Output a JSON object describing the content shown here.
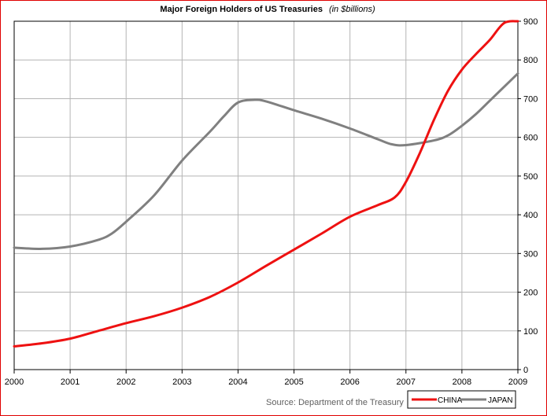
{
  "chart_data": {
    "type": "line",
    "title": "Major Foreign Holders of US Treasuries",
    "subtitle": "(in $billions)",
    "source": "Source: Department of the Treasury",
    "x_ticks": [
      "2000",
      "2001",
      "2002",
      "2003",
      "2004",
      "2005",
      "2006",
      "2007",
      "2008",
      "2009"
    ],
    "y_ticks": [
      "0",
      "100",
      "200",
      "300",
      "400",
      "500",
      "600",
      "700",
      "800",
      "900"
    ],
    "xlim": [
      2000,
      2009
    ],
    "ylim": [
      0,
      900
    ],
    "grid": true,
    "y_axis_side": "right",
    "legend_position": "bottom-right",
    "series": [
      {
        "name": "CHINA",
        "color": "#ee1111",
        "x": [
          2000,
          2000.5,
          2001,
          2001.5,
          2002,
          2002.5,
          2003,
          2003.5,
          2004,
          2004.5,
          2005,
          2005.5,
          2006,
          2006.5,
          2006.8,
          2007,
          2007.25,
          2007.5,
          2007.75,
          2008,
          2008.25,
          2008.5,
          2008.75,
          2009
        ],
        "y": [
          60,
          68,
          80,
          100,
          120,
          138,
          160,
          188,
          225,
          268,
          310,
          352,
          395,
          425,
          445,
          485,
          560,
          645,
          720,
          775,
          815,
          852,
          895,
          900
        ]
      },
      {
        "name": "JAPAN",
        "color": "#808080",
        "x": [
          2000,
          2000.5,
          2001,
          2001.5,
          2001.75,
          2002,
          2002.5,
          2003,
          2003.5,
          2003.75,
          2004,
          2004.3,
          2004.5,
          2005,
          2005.5,
          2006,
          2006.5,
          2006.75,
          2007,
          2007.5,
          2007.75,
          2008,
          2008.25,
          2008.5,
          2008.75,
          2009
        ],
        "y": [
          315,
          312,
          318,
          335,
          352,
          382,
          450,
          540,
          615,
          655,
          690,
          697,
          693,
          670,
          648,
          623,
          595,
          582,
          580,
          592,
          605,
          630,
          660,
          695,
          730,
          765
        ]
      }
    ]
  }
}
